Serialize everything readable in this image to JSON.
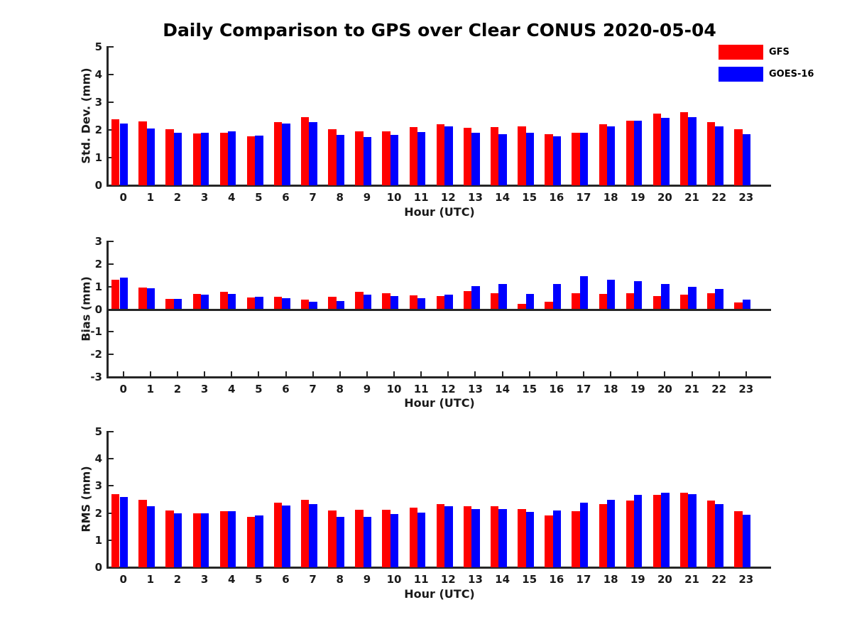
{
  "figure": {
    "title": "Daily Comparison to GPS over Clear CONUS 2020-05-04",
    "background": "#ffffff",
    "axis_color": "#262626"
  },
  "legend": {
    "position": "outside-top-right",
    "items": [
      {
        "label": "GFS",
        "color": "#ff0000"
      },
      {
        "label": "GOES-16",
        "color": "#0000ff"
      }
    ]
  },
  "chart_data": [
    {
      "type": "bar",
      "panel": "std-dev",
      "title": "",
      "ylabel": "Std. Dev. (mm)",
      "xlabel": "Hour (UTC)",
      "grid": false,
      "ylim": [
        0,
        5
      ],
      "yticks": [
        0,
        1,
        2,
        3,
        4,
        5
      ],
      "categories": [
        0,
        1,
        2,
        3,
        4,
        5,
        6,
        7,
        8,
        9,
        10,
        11,
        12,
        13,
        14,
        15,
        16,
        17,
        18,
        19,
        20,
        21,
        22,
        23
      ],
      "series": [
        {
          "name": "GFS",
          "color": "#ff0000",
          "values": [
            2.38,
            2.3,
            2.02,
            1.87,
            1.91,
            1.78,
            2.28,
            2.45,
            2.02,
            1.96,
            1.95,
            2.1,
            2.2,
            2.08,
            2.09,
            2.12,
            1.85,
            1.9,
            2.2,
            2.34,
            2.6,
            2.64,
            2.28,
            2.02
          ]
        },
        {
          "name": "GOES-16",
          "color": "#0000ff",
          "values": [
            2.22,
            2.06,
            1.9,
            1.89,
            1.94,
            1.8,
            2.24,
            2.28,
            1.81,
            1.74,
            1.82,
            1.93,
            2.14,
            1.89,
            1.84,
            1.89,
            1.76,
            1.89,
            2.12,
            2.33,
            2.44,
            2.46,
            2.14,
            1.85
          ]
        }
      ]
    },
    {
      "type": "bar",
      "panel": "bias",
      "title": "",
      "ylabel": "Bias (mm)",
      "xlabel": "Hour (UTC)",
      "grid": false,
      "ylim": [
        -3,
        3
      ],
      "yticks": [
        -3,
        -2,
        -1,
        0,
        1,
        2,
        3
      ],
      "categories": [
        0,
        1,
        2,
        3,
        4,
        5,
        6,
        7,
        8,
        9,
        10,
        11,
        12,
        13,
        14,
        15,
        16,
        17,
        18,
        19,
        20,
        21,
        22,
        23
      ],
      "series": [
        {
          "name": "GFS",
          "color": "#ff0000",
          "values": [
            1.3,
            0.97,
            0.47,
            0.68,
            0.76,
            0.52,
            0.55,
            0.43,
            0.54,
            0.78,
            0.72,
            0.62,
            0.59,
            0.79,
            0.72,
            0.22,
            0.34,
            0.7,
            0.67,
            0.7,
            0.58,
            0.63,
            0.7,
            0.29
          ]
        },
        {
          "name": "GOES-16",
          "color": "#0000ff",
          "values": [
            1.4,
            0.94,
            0.47,
            0.64,
            0.66,
            0.56,
            0.5,
            0.32,
            0.36,
            0.63,
            0.59,
            0.49,
            0.64,
            1.03,
            1.1,
            0.69,
            1.12,
            1.45,
            1.3,
            1.23,
            1.11,
            0.99,
            0.88,
            0.42
          ]
        }
      ]
    },
    {
      "type": "bar",
      "panel": "rms",
      "title": "",
      "ylabel": "RMS (mm)",
      "xlabel": "Hour (UTC)",
      "grid": false,
      "ylim": [
        0,
        5
      ],
      "yticks": [
        0,
        1,
        2,
        3,
        4,
        5
      ],
      "categories": [
        0,
        1,
        2,
        3,
        4,
        5,
        6,
        7,
        8,
        9,
        10,
        11,
        12,
        13,
        14,
        15,
        16,
        17,
        18,
        19,
        20,
        21,
        22,
        23
      ],
      "series": [
        {
          "name": "GFS",
          "color": "#ff0000",
          "values": [
            2.7,
            2.48,
            2.1,
            1.99,
            2.07,
            1.86,
            2.38,
            2.48,
            2.1,
            2.13,
            2.12,
            2.2,
            2.32,
            2.26,
            2.24,
            2.15,
            1.92,
            2.06,
            2.32,
            2.46,
            2.68,
            2.74,
            2.45,
            2.08
          ]
        },
        {
          "name": "GOES-16",
          "color": "#0000ff",
          "values": [
            2.6,
            2.25,
            1.99,
            2.0,
            2.07,
            1.91,
            2.28,
            2.32,
            1.86,
            1.86,
            1.96,
            2.02,
            2.26,
            2.15,
            2.15,
            2.03,
            2.1,
            2.38,
            2.49,
            2.66,
            2.74,
            2.7,
            2.33,
            1.93
          ]
        }
      ]
    }
  ]
}
